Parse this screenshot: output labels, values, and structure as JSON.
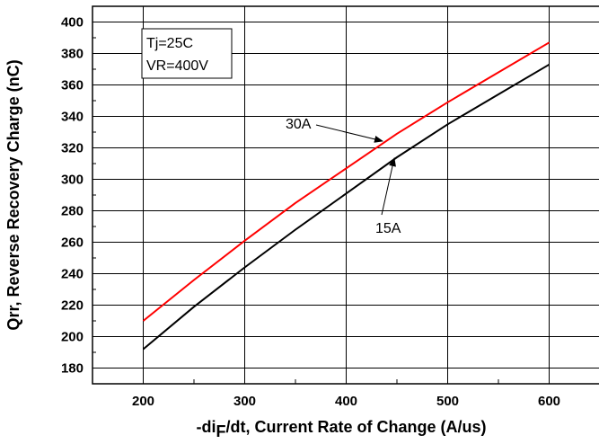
{
  "chart_data": {
    "type": "line",
    "xlabel": {
      "pre": "-di",
      "sub": "F",
      "post": "/dt, Current Rate of Change (A/us)"
    },
    "ylabel": "Qrr, Reverse Recovery Charge (nC)",
    "xlim": [
      150,
      650
    ],
    "ylim": [
      170,
      410
    ],
    "xticks": [
      200,
      300,
      400,
      500,
      600
    ],
    "yticks": [
      180,
      200,
      220,
      240,
      260,
      280,
      300,
      320,
      340,
      360,
      380,
      400
    ],
    "grid": true,
    "conditions": [
      "Tj=25C",
      "VR=400V"
    ],
    "series": [
      {
        "name": "30A",
        "color": "#ff0000",
        "x": [
          200,
          250,
          300,
          350,
          400,
          450,
          500,
          550,
          600
        ],
        "y": [
          210,
          236,
          261,
          285,
          307,
          329,
          349,
          368,
          387
        ]
      },
      {
        "name": "15A",
        "color": "#000000",
        "x": [
          200,
          250,
          300,
          350,
          400,
          450,
          500,
          550,
          600
        ],
        "y": [
          192,
          219,
          244,
          268,
          291,
          314,
          335,
          354,
          373
        ]
      }
    ],
    "annotations": [
      {
        "text": "30A",
        "series": "30A",
        "x": 445
      },
      {
        "text": "15A",
        "series": "15A",
        "x": 448
      }
    ]
  }
}
